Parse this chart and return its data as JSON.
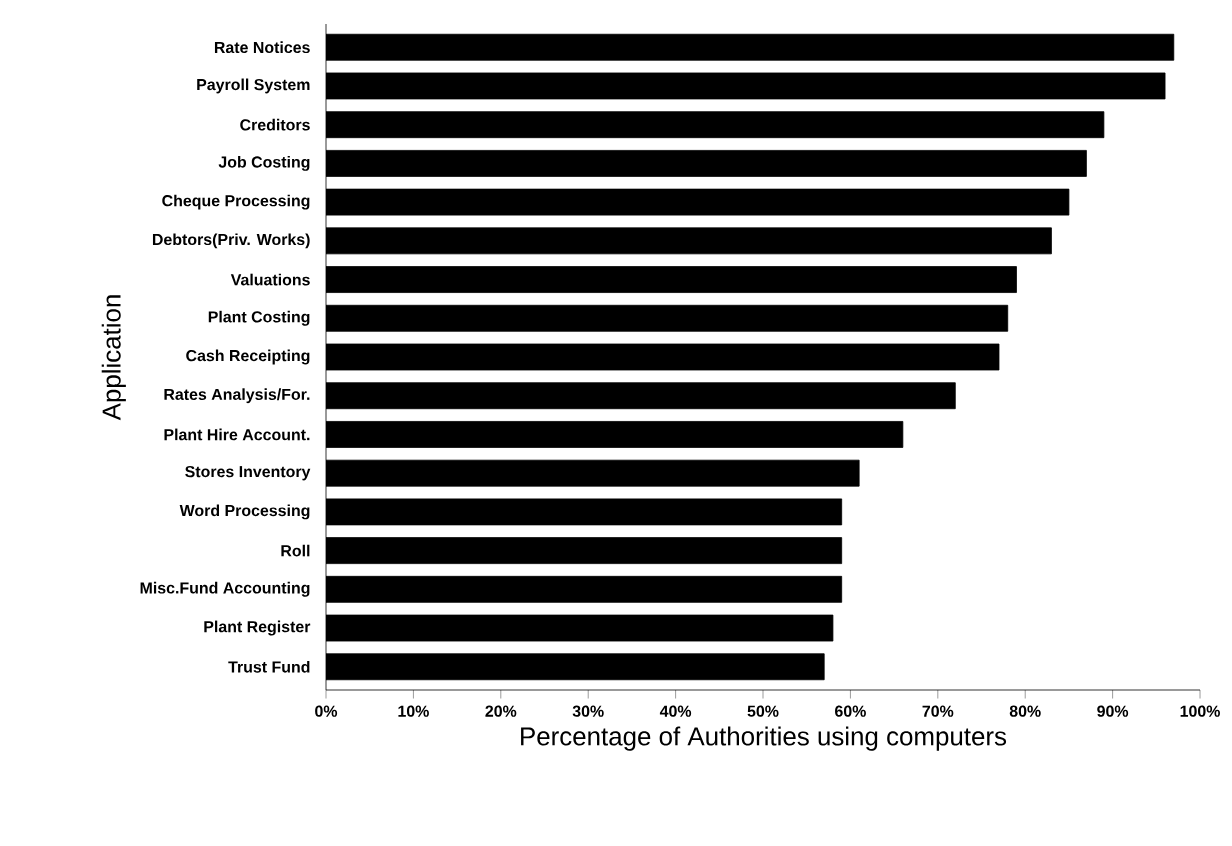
{
  "chart_data": {
    "type": "bar",
    "orientation": "horizontal",
    "xlabel": "Percentage of Authorities using computers",
    "ylabel": "Application",
    "categories": [
      "Rate Notices",
      "Payroll System",
      "Creditors",
      "Job Costing",
      "Cheque Processing",
      "Debtors(Priv. Works)",
      "Valuations",
      "Plant Costing",
      "Cash Receipting",
      "Rates Analysis/For.",
      "Plant Hire Account.",
      "Stores Inventory",
      "Word Processing",
      "Roll",
      "Misc.Fund Accounting",
      "Plant Register",
      "Trust Fund"
    ],
    "values": [
      97,
      96,
      89,
      87,
      85,
      83,
      79,
      78,
      77,
      72,
      66,
      61,
      59,
      59,
      59,
      58,
      57
    ],
    "color": "#000000",
    "xlim": [
      0,
      100
    ],
    "xticks": [
      {
        "value": 0,
        "label": "0%"
      },
      {
        "value": 10,
        "label": "10%"
      },
      {
        "value": 20,
        "label": "20%"
      },
      {
        "value": 30,
        "label": "30%"
      },
      {
        "value": 40,
        "label": "40%"
      },
      {
        "value": 50,
        "label": "50%"
      },
      {
        "value": 60,
        "label": "60%"
      },
      {
        "value": 70,
        "label": "70%"
      },
      {
        "value": 80,
        "label": "80%"
      },
      {
        "value": 90,
        "label": "90%"
      },
      {
        "value": 100,
        "label": "100%"
      }
    ],
    "grid": false
  }
}
